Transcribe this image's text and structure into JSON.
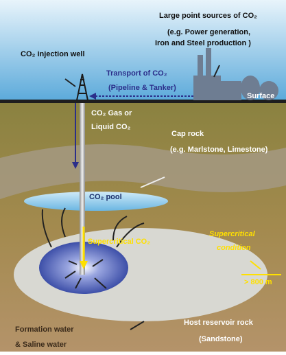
{
  "sources": {
    "title": "Large point sources of CO₂",
    "line1": "(e.g. Power generation,",
    "line2": "Iron and Steel production )"
  },
  "well": {
    "label": "CO₂ injection well"
  },
  "transport": {
    "title": "Transport of CO₂",
    "detail": "(Pipeline & Tanker)"
  },
  "surface": "Surface",
  "injection": {
    "line1": "CO₂ Gas or",
    "line2": "Liquid CO₂"
  },
  "cap_rock": {
    "title": "Cap rock",
    "detail": "(e.g. Marlstone, Limestone)"
  },
  "pool": "CO₂ pool",
  "supercritical_co2": "Supercritical CO₂",
  "condition": {
    "line1": "Supercritical",
    "line2": "condition",
    "depth": "> 800 m"
  },
  "formation_water": {
    "line1": "Formation water",
    "line2": "& Saline water"
  },
  "host_rock": {
    "line1": "Host reservoir rock",
    "line2": "(Sandstone)"
  }
}
